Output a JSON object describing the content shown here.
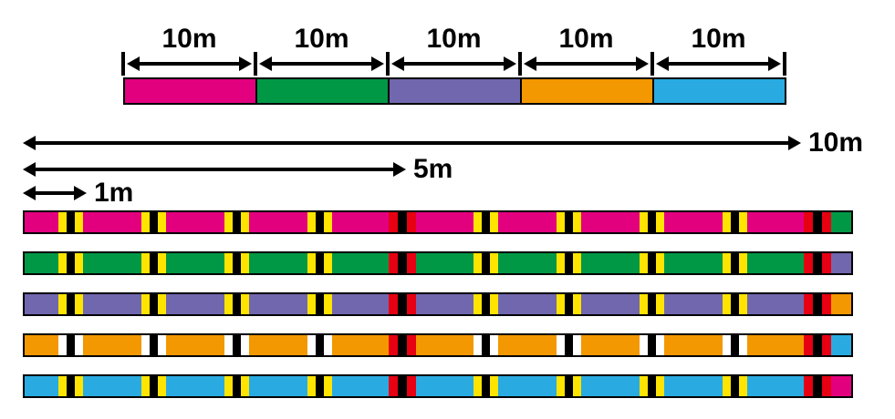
{
  "colors": {
    "magenta": "#e3007f",
    "green": "#009845",
    "purple": "#7167ae",
    "orange": "#f39800",
    "cyan": "#29abe2",
    "yellow": "#ffe400",
    "red": "#e60012",
    "black": "#000000",
    "white": "#ffffff"
  },
  "top_scale": {
    "segments": [
      {
        "label": "10m",
        "color": "magenta"
      },
      {
        "label": "10m",
        "color": "green"
      },
      {
        "label": "10m",
        "color": "purple"
      },
      {
        "label": "10m",
        "color": "orange"
      },
      {
        "label": "10m",
        "color": "cyan"
      }
    ]
  },
  "rulers": [
    {
      "label": "10m",
      "length_m": 10
    },
    {
      "label": "5m",
      "length_m": 5
    },
    {
      "label": "1m",
      "length_m": 1
    }
  ],
  "marked_lines": {
    "section_length_m": 10,
    "mark_interval_m": 1,
    "red_marks_m": [
      5,
      10
    ],
    "lines": [
      {
        "base": "magenta",
        "mark": "yellow",
        "next": "green"
      },
      {
        "base": "green",
        "mark": "yellow",
        "next": "purple"
      },
      {
        "base": "purple",
        "mark": "yellow",
        "next": "orange"
      },
      {
        "base": "orange",
        "mark": "white",
        "next": "cyan"
      },
      {
        "base": "cyan",
        "mark": "yellow",
        "next": "magenta"
      }
    ]
  }
}
